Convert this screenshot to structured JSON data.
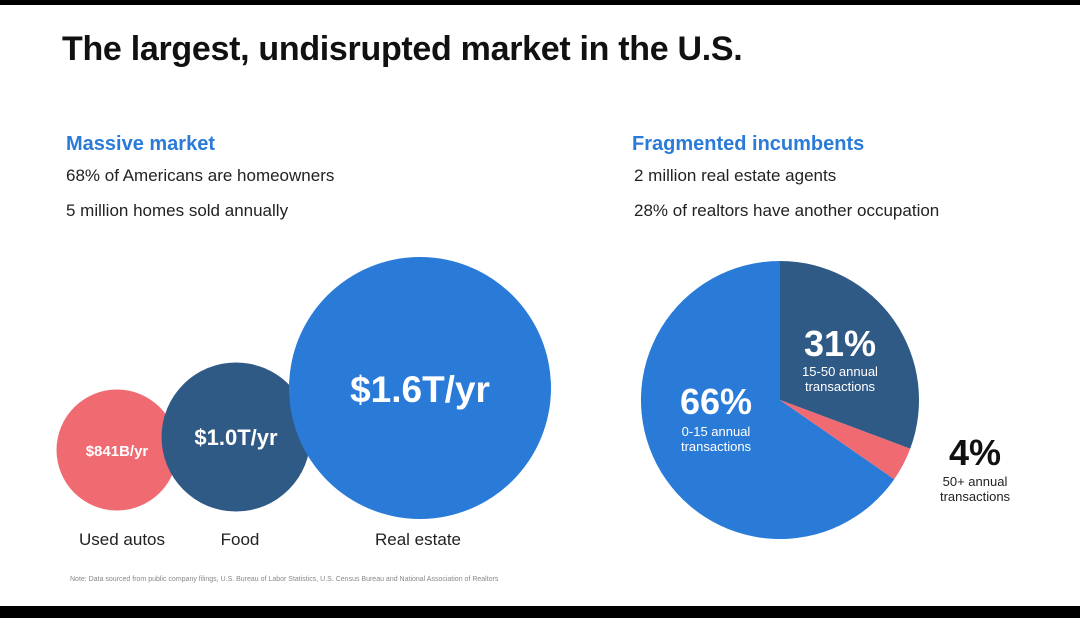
{
  "title": "The largest, undisrupted market in the U.S.",
  "left": {
    "heading": "Massive market",
    "facts": [
      "68% of Americans are homeowners",
      "5 million homes sold annually"
    ]
  },
  "right": {
    "heading": "Fragmented incumbents",
    "facts": [
      "2 million real estate agents",
      "28% of realtors have another occupation"
    ]
  },
  "note": "Note: Data sourced from public company filings, U.S. Bureau of Labor Statistics, U.S. Census Bureau and National Association of Realtors",
  "colors": {
    "blue": "#2a7bd8",
    "navy": "#305a86",
    "coral": "#f06b71"
  },
  "chart_data": [
    {
      "type": "bubble",
      "title": "",
      "categories": [
        "Used autos",
        "Food",
        "Real estate"
      ],
      "values": [
        0.841,
        1.0,
        1.6
      ],
      "unit": "$T/yr",
      "labels": [
        "$841B/yr",
        "$1.0T/yr",
        "$1.6T/yr"
      ]
    },
    {
      "type": "pie",
      "title": "",
      "slices": [
        {
          "pct_label": "66%",
          "label": "0-15 annual transactions",
          "value": 66
        },
        {
          "pct_label": "31%",
          "label": "15-50 annual transactions",
          "value": 31
        },
        {
          "pct_label": "4%",
          "label": "50+ annual transactions",
          "value": 4
        }
      ]
    }
  ]
}
